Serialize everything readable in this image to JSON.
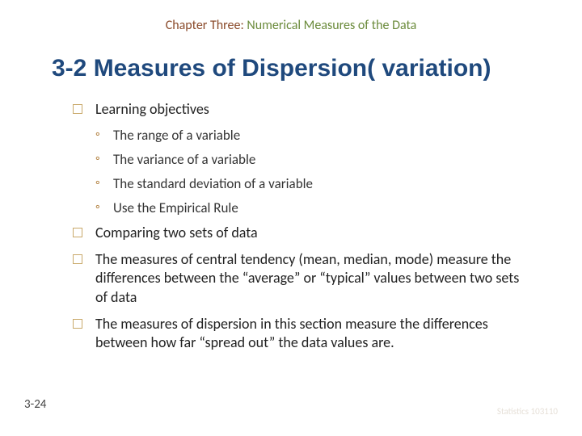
{
  "chapter": {
    "prefix": "Chapter Three: ",
    "title": "Numerical Measures of the Data"
  },
  "heading": "3-2 Measures of Dispersion( variation)",
  "items": [
    {
      "text": "Learning objectives",
      "sub": [
        "The range of a variable",
        "The variance of a variable",
        "The standard deviation of a variable",
        "Use the Empirical Rule"
      ]
    },
    {
      "text": "Comparing two sets of data"
    },
    {
      "text": "The measures of central tendency (mean, median, mode) measure the differences between the “average” or “typical” values between two sets of data"
    },
    {
      "text": "The measures of dispersion in this section measure the differences between how far “spread out” the data values are."
    }
  ],
  "pageNumber": "3-24",
  "footerNote": "Statistics 103110",
  "colors": {
    "titleColor": "#1f497d",
    "chapterPrefixColor": "#8a4a2a",
    "chapterTitleColor": "#6a8a3a",
    "bulletBorder": "#c9a96a",
    "subBulletColor": "#b07d3a",
    "footerColor": "#e6e0d8"
  }
}
